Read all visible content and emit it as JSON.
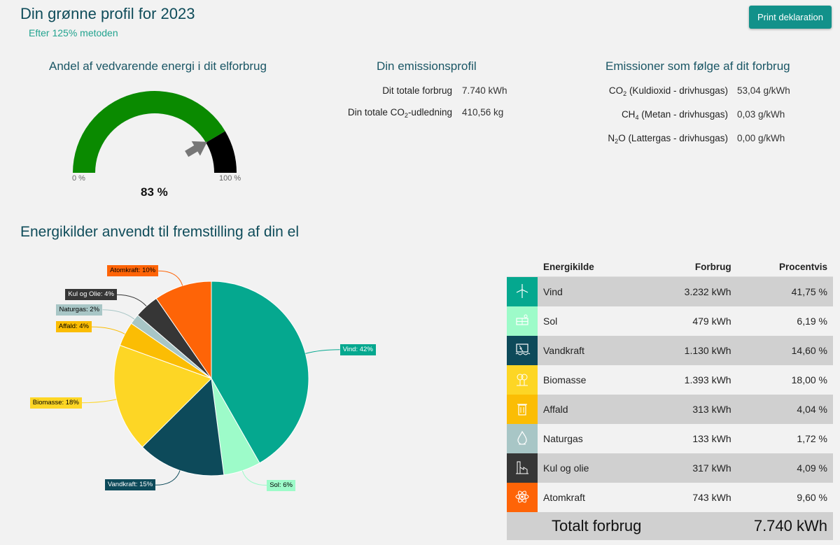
{
  "header": {
    "title": "Din grønne profil for 2023",
    "subtitle": "Efter 125% metoden",
    "print_label": "Print deklaration"
  },
  "gauge": {
    "title": "Andel af vedvarende energi i dit elforbrug",
    "min_label": "0 %",
    "max_label": "100 %",
    "value_label": "83 %",
    "value_fraction": 0.83,
    "colors": {
      "filled": "#0a8a00",
      "rest": "#000000",
      "arrow": "#777777"
    }
  },
  "emissions": {
    "title": "Din emissionsprofil",
    "rows": [
      {
        "label": "Dit totale forbrug",
        "value": "7.740 kWh"
      },
      {
        "label_pre": "Din totale CO",
        "label_sub": "2",
        "label_post": "-udledning",
        "value": "410,56 kg"
      }
    ]
  },
  "consumption_emissions": {
    "title": "Emissioner som følge af dit forbrug",
    "rows": [
      {
        "pre": "CO",
        "sub": "2",
        "post": " (Kuldioxid - drivhusgas)",
        "value": "53,04 g/kWh"
      },
      {
        "pre": "CH",
        "sub": "4",
        "post": " (Metan - drivhusgas)",
        "value": "0,03 g/kWh"
      },
      {
        "pre": "N",
        "sub": "2",
        "post": "O (Lattergas - drivhusgas)",
        "value": "0,00 g/kWh"
      }
    ]
  },
  "pie_section": {
    "title": "Energikilder anvendt til fremstilling af din el"
  },
  "chart_data": {
    "type": "pie",
    "slices": [
      {
        "name": "Vind",
        "label": "Vind: 42%",
        "value": 41.75,
        "color": "#05a88f",
        "label_color": "#ffffff"
      },
      {
        "name": "Sol",
        "label": "Sol: 6%",
        "value": 6.19,
        "color": "#9dfbc9",
        "label_color": "#000000"
      },
      {
        "name": "Vandkraft",
        "label": "Vandkraft: 15%",
        "value": 14.6,
        "color": "#0d4a5a",
        "label_color": "#ffffff"
      },
      {
        "name": "Biomasse",
        "label": "Biomasse: 18%",
        "value": 18.0,
        "color": "#fdd625",
        "label_color": "#000000"
      },
      {
        "name": "Affald",
        "label": "Affald: 4%",
        "value": 4.04,
        "color": "#fbbd04",
        "label_color": "#000000"
      },
      {
        "name": "Naturgas",
        "label": "Naturgas: 2%",
        "value": 1.72,
        "color": "#a8c6c6",
        "label_color": "#000000"
      },
      {
        "name": "Kul og olie",
        "label": "Kul og Olie: 4%",
        "value": 4.09,
        "color": "#363636",
        "label_color": "#ffffff"
      },
      {
        "name": "Atomkraft",
        "label": "Atomkraft: 10%",
        "value": 9.6,
        "color": "#fe6407",
        "label_color": "#000000"
      }
    ]
  },
  "table": {
    "headers": {
      "source": "Energikilde",
      "usage": "Forbrug",
      "pct": "Procentvis"
    },
    "rows": [
      {
        "name": "Vind",
        "usage": "3.232 kWh",
        "pct": "41,75 %",
        "icon": "wind-turbine-icon",
        "color": "#05a88f"
      },
      {
        "name": "Sol",
        "usage": "479 kWh",
        "pct": "6,19 %",
        "icon": "solar-panel-icon",
        "color": "#9dfbc9"
      },
      {
        "name": "Vandkraft",
        "usage": "1.130 kWh",
        "pct": "14,60 %",
        "icon": "hydro-dam-icon",
        "color": "#0d4a5a"
      },
      {
        "name": "Biomasse",
        "usage": "1.393 kWh",
        "pct": "18,00 %",
        "icon": "biomass-icon",
        "color": "#fdd625"
      },
      {
        "name": "Affald",
        "usage": "313 kWh",
        "pct": "4,04 %",
        "icon": "trash-can-icon",
        "color": "#fbbd04"
      },
      {
        "name": "Naturgas",
        "usage": "133 kWh",
        "pct": "1,72 %",
        "icon": "gas-flame-icon",
        "color": "#a8c6c6"
      },
      {
        "name": "Kul og olie",
        "usage": "317 kWh",
        "pct": "4,09 %",
        "icon": "factory-icon",
        "color": "#363636"
      },
      {
        "name": "Atomkraft",
        "usage": "743 kWh",
        "pct": "9,60 %",
        "icon": "atom-icon",
        "color": "#fe6407"
      }
    ],
    "total_label": "Totalt forbrug",
    "total_value": "7.740 kWh"
  }
}
